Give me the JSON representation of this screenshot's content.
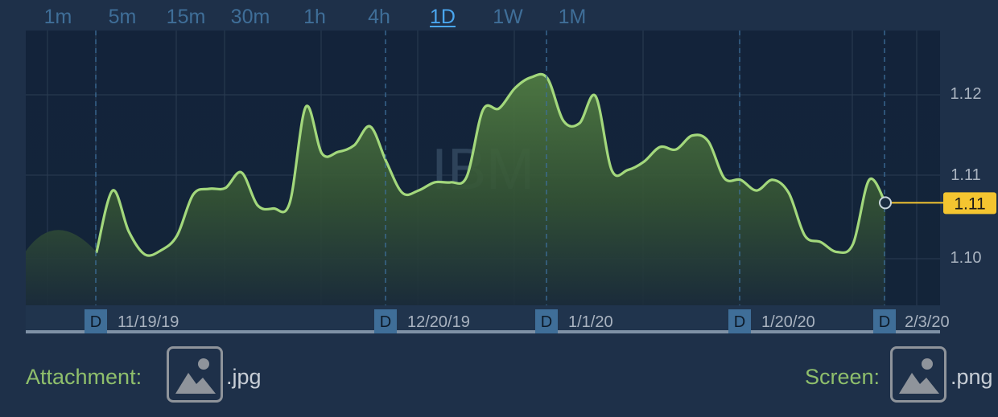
{
  "timeframes": [
    {
      "label": "1m",
      "active": false
    },
    {
      "label": "5m",
      "active": false
    },
    {
      "label": "15m",
      "active": false
    },
    {
      "label": "30m",
      "active": false
    },
    {
      "label": "1h",
      "active": false
    },
    {
      "label": "4h",
      "active": false
    },
    {
      "label": "1D",
      "active": true
    },
    {
      "label": "1W",
      "active": false
    },
    {
      "label": "1M",
      "active": false
    }
  ],
  "watermark": "IBM",
  "current_price_label": "1.11",
  "day_marker": "D",
  "chart_data": {
    "type": "area",
    "symbol": "IBM",
    "interval": "1D",
    "y_tick_labels": [
      "1.12",
      "1.11",
      "1.10"
    ],
    "x_tick_labels": [
      "11/19/19",
      "12/20/19",
      "1/1/20",
      "1/20/20",
      "2/3/20"
    ],
    "ylim": [
      1.094,
      1.1275
    ],
    "grid": true,
    "y": [
      1.1005,
      1.108,
      1.103,
      1.1002,
      1.1007,
      1.1025,
      1.1075,
      1.1082,
      1.1083,
      1.1102,
      1.1062,
      1.1058,
      1.1065,
      1.1182,
      1.1125,
      1.1127,
      1.1135,
      1.1158,
      1.1115,
      1.1077,
      1.108,
      1.109,
      1.109,
      1.1097,
      1.1178,
      1.118,
      1.1205,
      1.1218,
      1.1217,
      1.1165,
      1.1162,
      1.1195,
      1.1105,
      1.1105,
      1.1115,
      1.1133,
      1.113,
      1.1147,
      1.114,
      1.1095,
      1.1093,
      1.108,
      1.1093,
      1.1077,
      1.1025,
      1.1017,
      1.1005,
      1.1015,
      1.1093,
      1.1065
    ],
    "last_value": 1.1065,
    "colors": {
      "line": "#a3d87c",
      "price_tag": "#f4c530",
      "marker_tag": "#3f6e98"
    }
  },
  "footer": {
    "attachment_label": "Attachment:",
    "attachment_ext": ".jpg",
    "screen_label": "Screen:",
    "screen_ext": ".png"
  }
}
